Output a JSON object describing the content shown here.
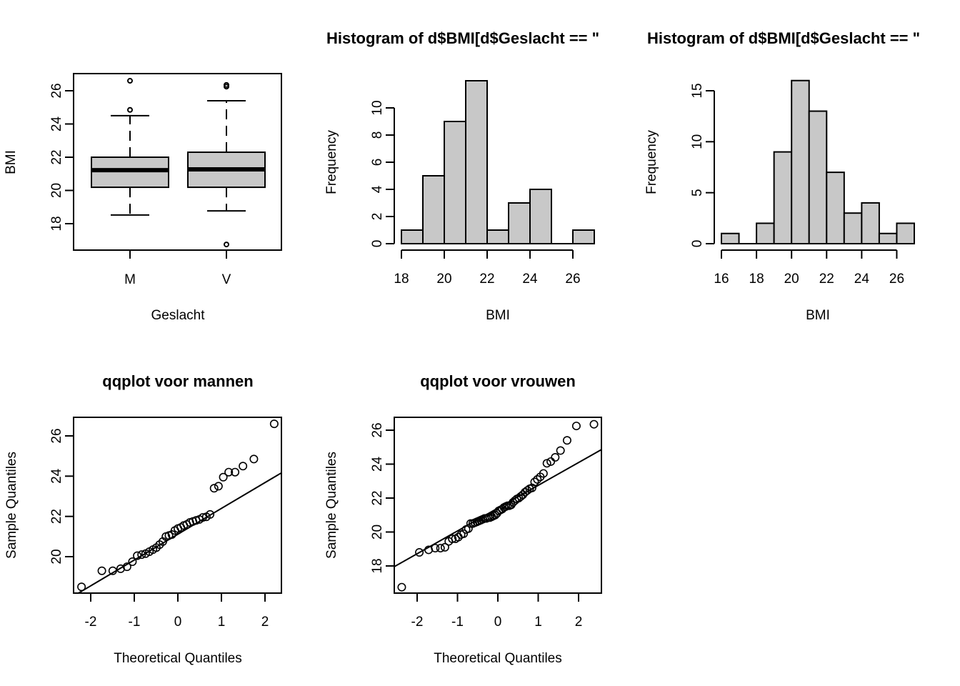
{
  "chart_data": [
    {
      "type": "boxplot",
      "title": "",
      "xlabel": "Geslacht",
      "ylabel": "BMI",
      "categories": [
        "M",
        "V"
      ],
      "yticks": [
        18,
        20,
        22,
        24,
        26
      ],
      "ylim": [
        16.5,
        27.0
      ],
      "boxes": [
        {
          "name": "M",
          "lower_whisker": 18.52,
          "q1": 20.19,
          "median": 21.22,
          "q3": 22.0,
          "upper_whisker": 24.5,
          "outliers": [
            24.85,
            26.6
          ]
        },
        {
          "name": "V",
          "lower_whisker": 18.77,
          "q1": 20.19,
          "median": 21.27,
          "q3": 22.3,
          "upper_whisker": 25.4,
          "outliers": [
            26.25,
            26.35,
            16.75
          ]
        }
      ]
    },
    {
      "type": "bar",
      "subtype": "histogram",
      "title": "Histogram of d$BMI[d$Geslacht == \"",
      "xlabel": "BMI",
      "ylabel": "Frequency",
      "bin_edges": [
        18,
        19,
        20,
        21,
        22,
        23,
        24,
        25,
        26,
        27
      ],
      "values": [
        1,
        5,
        9,
        12,
        1,
        3,
        4,
        0,
        1
      ],
      "xticks": [
        18,
        20,
        22,
        24,
        26
      ],
      "yticks": [
        0,
        2,
        4,
        6,
        8,
        10
      ],
      "xlim": [
        18,
        27
      ],
      "ylim": [
        0,
        12
      ]
    },
    {
      "type": "bar",
      "subtype": "histogram",
      "title": "Histogram of d$BMI[d$Geslacht == \"",
      "xlabel": "BMI",
      "ylabel": "Frequency",
      "bin_edges": [
        16,
        17,
        18,
        19,
        20,
        21,
        22,
        23,
        24,
        25,
        26,
        27
      ],
      "values": [
        1,
        0,
        2,
        9,
        16,
        13,
        7,
        3,
        4,
        1,
        2
      ],
      "xticks": [
        16,
        18,
        20,
        22,
        24,
        26
      ],
      "yticks": [
        0,
        5,
        10,
        15
      ],
      "xlim": [
        16,
        27
      ],
      "ylim": [
        0,
        16
      ]
    },
    {
      "type": "scatter",
      "subtype": "qqplot",
      "title": "qqplot voor mannen",
      "xlabel": "Theoretical Quantiles",
      "ylabel": "Sample Quantiles",
      "xticks": [
        -2,
        -1,
        0,
        1,
        2
      ],
      "yticks": [
        20,
        22,
        24,
        26
      ],
      "xlim": [
        -2.4,
        2.4
      ],
      "ylim": [
        18.3,
        26.9
      ],
      "sample": [
        18.5,
        19.3,
        19.3,
        19.4,
        19.5,
        19.75,
        20.05,
        20.1,
        20.15,
        20.25,
        20.35,
        20.45,
        20.6,
        20.75,
        21.0,
        21.05,
        21.1,
        21.3,
        21.4,
        21.45,
        21.55,
        21.6,
        21.7,
        21.75,
        21.8,
        21.85,
        21.95,
        21.98,
        22.1,
        23.4,
        23.5,
        23.95,
        24.2,
        24.2,
        24.5,
        24.85,
        26.6
      ],
      "qqline": true
    },
    {
      "type": "scatter",
      "subtype": "qqplot",
      "title": "qqplot voor vrouwen",
      "xlabel": "Theoretical Quantiles",
      "ylabel": "Sample Quantiles",
      "xticks": [
        -2,
        -1,
        0,
        1,
        2
      ],
      "yticks": [
        18,
        20,
        22,
        24,
        26
      ],
      "xlim": [
        -2.6,
        2.6
      ],
      "ylim": [
        16.5,
        26.8
      ],
      "sample": [
        16.75,
        18.8,
        18.95,
        19.05,
        19.05,
        19.1,
        19.45,
        19.6,
        19.6,
        19.7,
        19.85,
        19.9,
        20.15,
        20.2,
        20.5,
        20.5,
        20.55,
        20.6,
        20.65,
        20.7,
        20.75,
        20.8,
        20.8,
        20.85,
        20.85,
        20.9,
        20.95,
        21.0,
        21.1,
        21.25,
        21.3,
        21.35,
        21.45,
        21.5,
        21.55,
        21.55,
        21.6,
        21.75,
        21.85,
        21.95,
        22.0,
        22.1,
        22.2,
        22.35,
        22.45,
        22.55,
        22.6,
        22.95,
        23.1,
        23.25,
        23.45,
        24.05,
        24.15,
        24.4,
        24.8,
        25.4,
        26.25,
        26.35
      ],
      "qqline": true
    }
  ]
}
